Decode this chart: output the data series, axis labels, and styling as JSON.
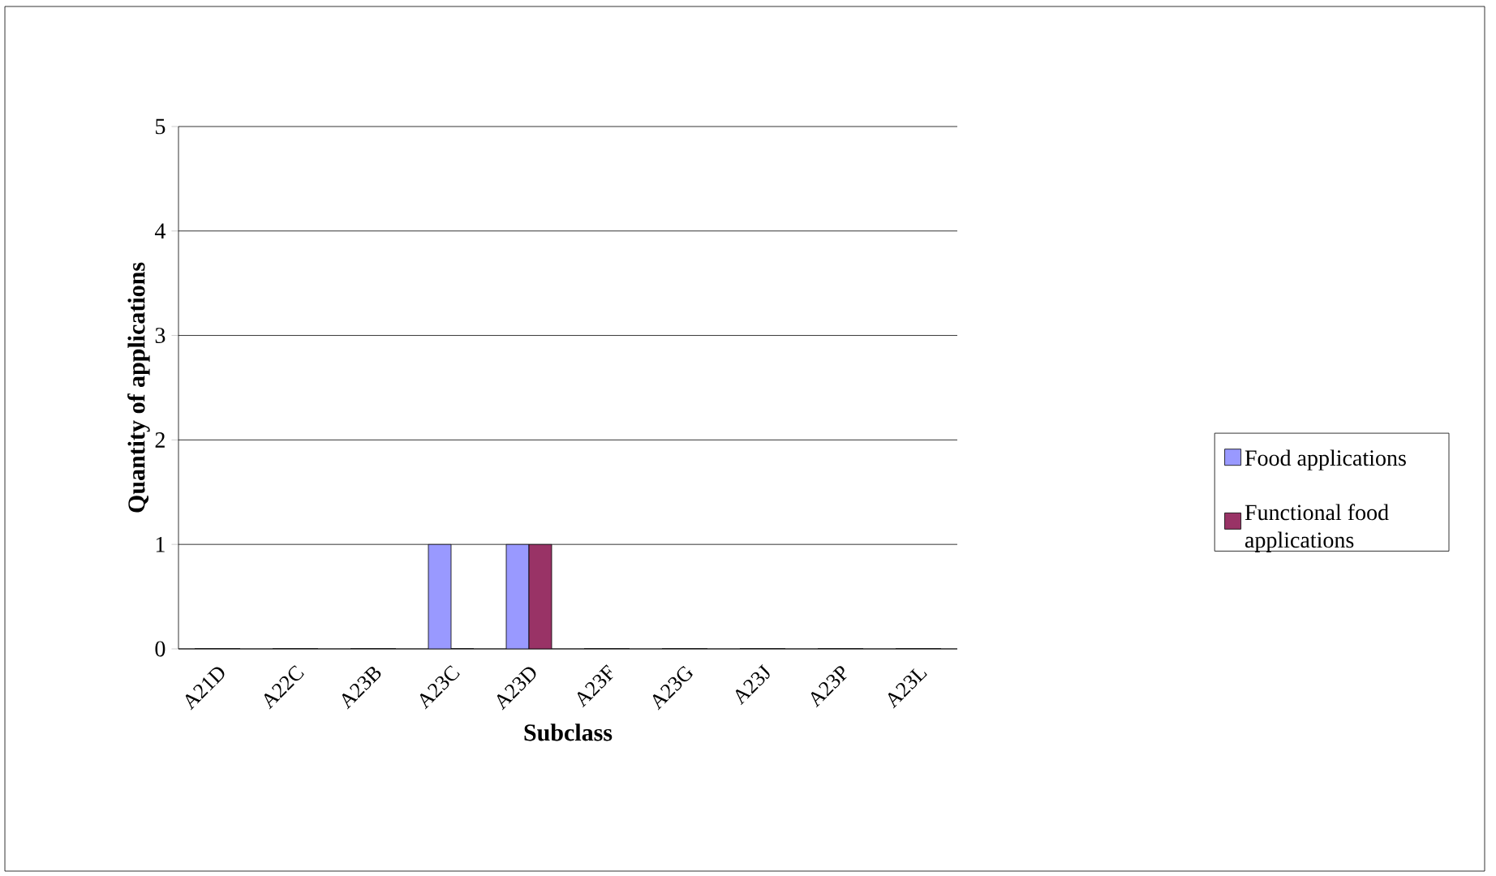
{
  "chart_data": {
    "type": "bar",
    "xlabel": "Subclass",
    "ylabel": "Quantity of applications",
    "categories": [
      "A21D",
      "A22C",
      "A23B",
      "A23C",
      "A23D",
      "A23F",
      "A23G",
      "A23J",
      "A23P",
      "A23L"
    ],
    "series": [
      {
        "name": "Food applications",
        "color": "#9999ff",
        "values": [
          0,
          0,
          0,
          1,
          1,
          0,
          0,
          0,
          0,
          0
        ]
      },
      {
        "name": "Functional food applications",
        "color": "#993366",
        "values": [
          0,
          0,
          0,
          0,
          1,
          0,
          0,
          0,
          0,
          0
        ]
      }
    ],
    "ylim": [
      0,
      5
    ],
    "yticks": [
      0,
      1,
      2,
      3,
      4,
      5
    ],
    "grid": "y",
    "legend": "right"
  }
}
